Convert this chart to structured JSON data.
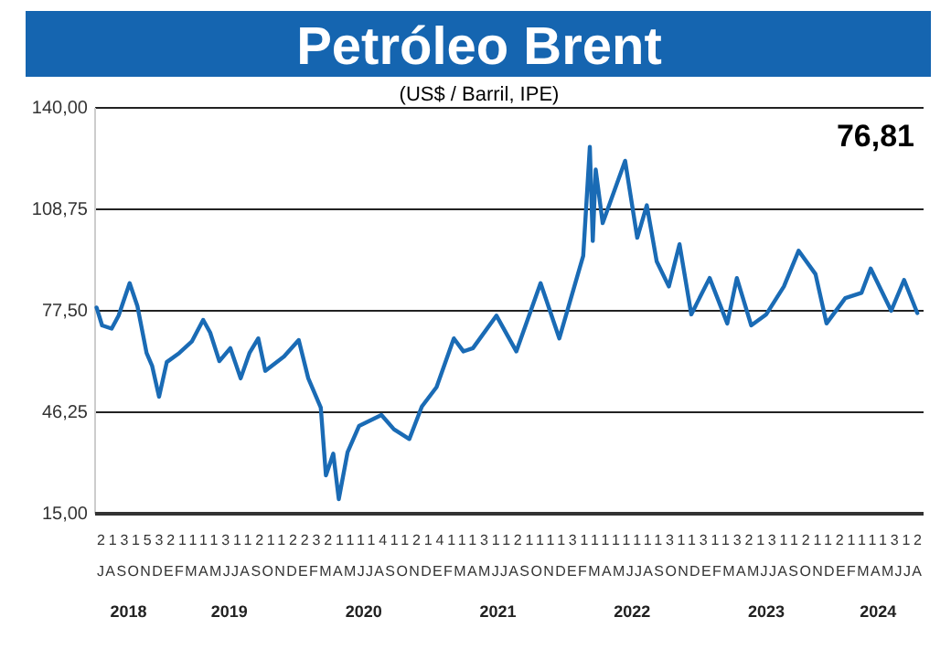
{
  "chart_data": {
    "type": "line",
    "title": "Petróleo Brent",
    "subtitle": "(US$ / Barril, IPE)",
    "x": [
      "2018-07-05",
      "2018-07-20",
      "2018-08-15",
      "2018-09-03",
      "2018-10-03",
      "2018-10-24",
      "2018-11-18",
      "2018-12-03",
      "2018-12-22",
      "2019-01-12",
      "2019-02-15",
      "2019-03-21",
      "2019-04-21",
      "2019-05-10",
      "2019-06-04",
      "2019-07-04",
      "2019-08-01",
      "2019-08-25",
      "2019-09-18",
      "2019-10-07",
      "2019-11-27",
      "2020-01-06",
      "2020-02-01",
      "2020-03-06",
      "2020-03-20",
      "2020-04-09",
      "2020-04-24",
      "2020-05-18",
      "2020-06-18",
      "2020-08-18",
      "2020-09-21",
      "2020-11-02",
      "2020-12-06",
      "2021-01-15",
      "2021-03-03",
      "2021-03-29",
      "2021-04-24",
      "2021-06-27",
      "2021-08-20",
      "2021-10-25",
      "2021-12-15",
      "2022-02-18",
      "2022-03-08",
      "2022-03-16",
      "2022-03-24",
      "2022-04-12",
      "2022-06-12",
      "2022-07-15",
      "2022-08-10",
      "2022-09-06",
      "2022-10-09",
      "2022-11-07",
      "2022-12-09",
      "2023-01-28",
      "2023-03-17",
      "2023-04-12",
      "2023-05-21",
      "2023-07-01",
      "2023-08-18",
      "2023-09-27",
      "2023-11-12",
      "2023-12-12",
      "2024-02-01",
      "2024-03-16",
      "2024-04-10",
      "2024-06-05",
      "2024-07-10",
      "2024-08-15"
    ],
    "series": [
      {
        "color": "#1a6bb5",
        "values": [
          78.5,
          73,
          72,
          76,
          86,
          79,
          64.5,
          60.6,
          51,
          61.7,
          64.5,
          68,
          74.7,
          70.8,
          62,
          66,
          56.7,
          64.5,
          69,
          59,
          63.4,
          68.5,
          56.7,
          47.7,
          26.8,
          33.5,
          19.5,
          34,
          42,
          45.4,
          41,
          38,
          48,
          54,
          69,
          65,
          66,
          76,
          65,
          86,
          69,
          94.4,
          128,
          99,
          121,
          104.5,
          123.7,
          100,
          110,
          92.7,
          85,
          98,
          76.4,
          87.6,
          73.6,
          87.6,
          73,
          76.4,
          85,
          96,
          88.8,
          73.6,
          81.4,
          83,
          90.5,
          77.5,
          87,
          76.8
        ]
      }
    ],
    "xlim": [
      "2018-07-01",
      "2024-09-01"
    ],
    "xticks": [
      {
        "value": "2018-09-30",
        "label": "2018"
      },
      {
        "value": "2019-07-01",
        "label": "2019"
      },
      {
        "value": "2020-07-01",
        "label": "2020"
      },
      {
        "value": "2021-07-01",
        "label": "2021"
      },
      {
        "value": "2022-07-01",
        "label": "2022"
      },
      {
        "value": "2023-07-01",
        "label": "2023"
      },
      {
        "value": "2024-04-30",
        "label": "2024"
      }
    ],
    "ylim": [
      15,
      140
    ],
    "yticks": [
      {
        "value": 15,
        "label": "15,00"
      },
      {
        "value": 46.25,
        "label": "46,25"
      },
      {
        "value": 77.5,
        "label": "77,50"
      },
      {
        "value": 108.75,
        "label": "108,75"
      },
      {
        "value": 140,
        "label": "140,00"
      }
    ],
    "grid": "y",
    "annotations": [
      "76,81",
      "21315321111311211223211114112141113112111131111111131131132131121121111312",
      "JASONDEFMAMJJASONDEFMAMJJASONDEFMAMJJASONDEFMAMJJASONDEFMAMJJASONDEFMAMJJA"
    ]
  }
}
